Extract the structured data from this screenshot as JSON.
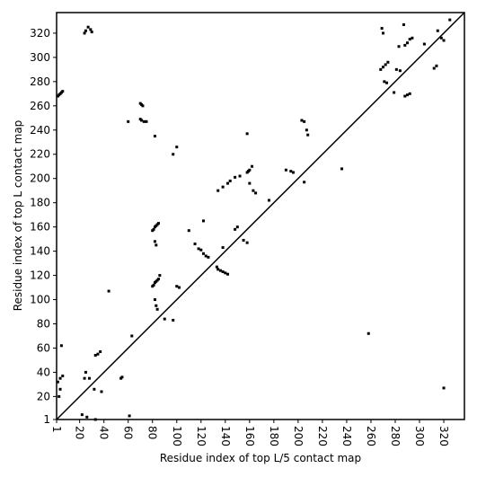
{
  "chart_data": {
    "type": "scatter",
    "xlabel": "Residue index of top L/5 contact map",
    "ylabel": "Residue index of top L contact map",
    "xlim": [
      1,
      337
    ],
    "ylim": [
      1,
      337
    ],
    "xticks": [
      1,
      20,
      40,
      60,
      80,
      100,
      120,
      140,
      160,
      180,
      200,
      220,
      240,
      260,
      280,
      300,
      320
    ],
    "yticks": [
      1,
      20,
      40,
      60,
      80,
      100,
      120,
      140,
      160,
      180,
      200,
      220,
      240,
      260,
      280,
      300,
      320
    ],
    "diagonal": true,
    "color": "#000000",
    "x": [
      2,
      3,
      4,
      5,
      6,
      24,
      25,
      27,
      29,
      30,
      70,
      71,
      72,
      70,
      71,
      73,
      75,
      60,
      82,
      100,
      97,
      80,
      81,
      82,
      83,
      84,
      85,
      82,
      83,
      80,
      81,
      82,
      83,
      84,
      85,
      86,
      82,
      83,
      84,
      100,
      102,
      97,
      90,
      110,
      115,
      118,
      120,
      122,
      124,
      126,
      122,
      133,
      134,
      136,
      138,
      140,
      142,
      138,
      134,
      138,
      142,
      144,
      148,
      152,
      158,
      159,
      160,
      162,
      160,
      163,
      165,
      158,
      148,
      150,
      155,
      158,
      176,
      190,
      194,
      196,
      203,
      205,
      205,
      207,
      208,
      236,
      268,
      270,
      272,
      274,
      269,
      270,
      271,
      273,
      281,
      284,
      279,
      288,
      290,
      292,
      288,
      290,
      292,
      294,
      287,
      283,
      304,
      312,
      314,
      315,
      318,
      320,
      325,
      258,
      320,
      2,
      4,
      5,
      6,
      4,
      3,
      33,
      35,
      37,
      32,
      38,
      25,
      24,
      28,
      55,
      54,
      63,
      44,
      22,
      26,
      33,
      61
    ],
    "y": [
      268,
      269,
      270,
      271,
      272,
      320,
      322,
      325,
      323,
      321,
      262,
      261,
      260,
      249,
      248,
      247,
      247,
      247,
      235,
      226,
      220,
      157,
      158,
      160,
      161,
      162,
      163,
      148,
      145,
      111,
      112,
      114,
      115,
      116,
      117,
      120,
      100,
      95,
      92,
      111,
      110,
      83,
      84,
      157,
      146,
      142,
      141,
      138,
      136,
      135,
      165,
      127,
      125,
      124,
      123,
      122,
      121,
      143,
      190,
      193,
      196,
      198,
      201,
      202,
      205,
      206,
      207,
      210,
      196,
      190,
      188,
      237,
      158,
      160,
      149,
      147,
      182,
      207,
      206,
      205,
      248,
      247,
      197,
      240,
      236,
      208,
      290,
      292,
      294,
      296,
      324,
      320,
      280,
      279,
      290,
      289,
      271,
      268,
      269,
      270,
      310,
      312,
      315,
      316,
      327,
      309,
      311,
      291,
      293,
      322,
      316,
      314,
      331,
      72,
      27,
      32,
      35,
      62,
      37,
      26,
      20,
      54,
      55,
      57,
      26,
      24,
      40,
      35,
      35,
      36,
      35,
      70,
      107,
      5,
      3,
      1,
      4
    ]
  }
}
